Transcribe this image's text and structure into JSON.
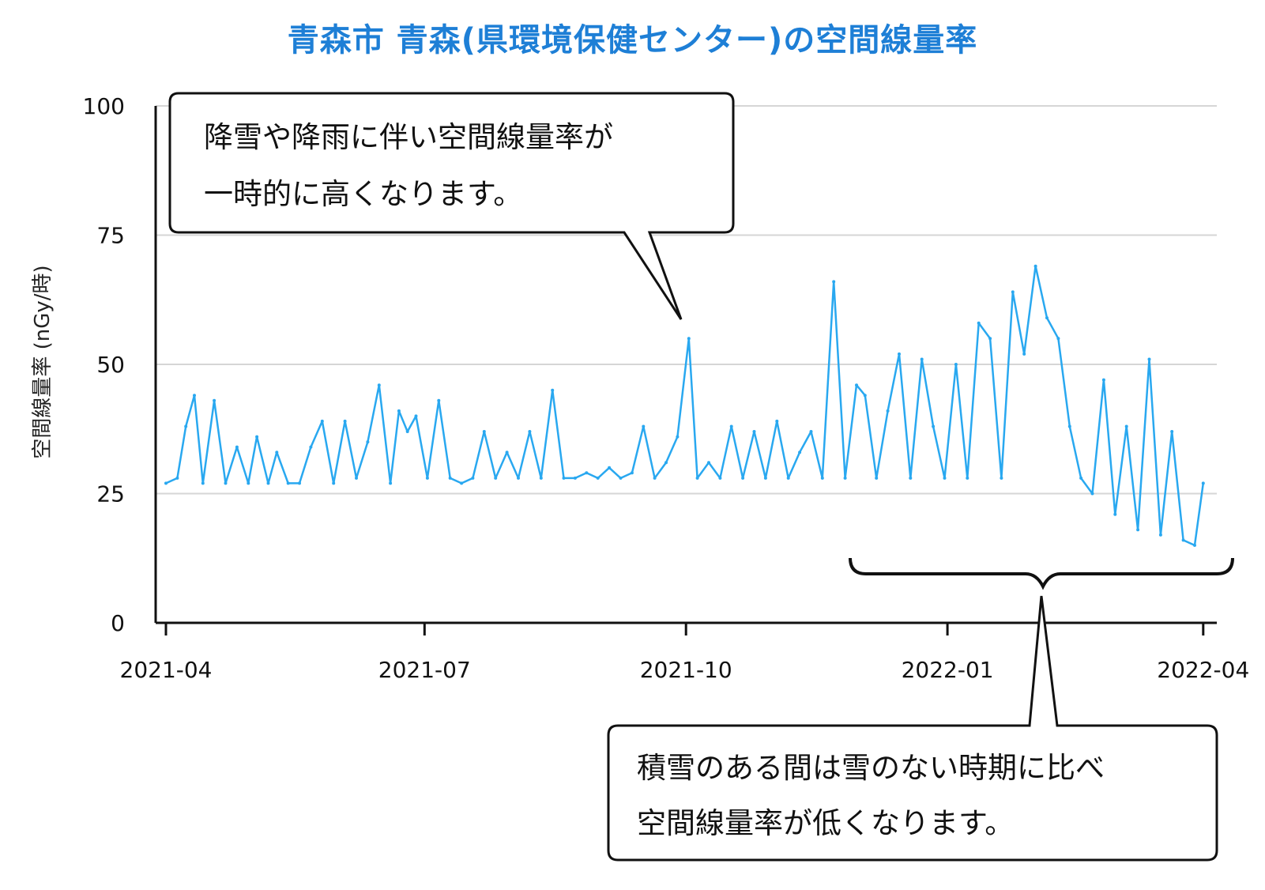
{
  "title": "青森市 青森(県環境保健センター)の空間線量率",
  "chart_data": {
    "type": "line",
    "title": "青森市 青森(県環境保健センター)の空間線量率",
    "ylabel": "空間線量率 (nGy/時)",
    "xlabel": "",
    "ylim": [
      0,
      100
    ],
    "yticks": [
      "0",
      "25",
      "50",
      "75",
      "100"
    ],
    "xticks": [
      {
        "label": "2021-04",
        "date": "2021-04-01"
      },
      {
        "label": "2021-07",
        "date": "2021-07-01"
      },
      {
        "label": "2021-10",
        "date": "2021-10-01"
      },
      {
        "label": "2022-01",
        "date": "2022-01-01"
      },
      {
        "label": "2022-04",
        "date": "2022-04-01"
      }
    ],
    "x_range": [
      "2021-04-01",
      "2022-04-03"
    ],
    "grid": true,
    "series": [
      {
        "color": "#29a8f0",
        "points": [
          [
            "2021-04-01",
            27
          ],
          [
            "2021-04-05",
            28
          ],
          [
            "2021-04-08",
            38
          ],
          [
            "2021-04-11",
            44
          ],
          [
            "2021-04-14",
            27
          ],
          [
            "2021-04-18",
            43
          ],
          [
            "2021-04-22",
            27
          ],
          [
            "2021-04-26",
            34
          ],
          [
            "2021-04-30",
            27
          ],
          [
            "2021-05-03",
            36
          ],
          [
            "2021-05-07",
            27
          ],
          [
            "2021-05-10",
            33
          ],
          [
            "2021-05-14",
            27
          ],
          [
            "2021-05-18",
            27
          ],
          [
            "2021-05-22",
            34
          ],
          [
            "2021-05-26",
            39
          ],
          [
            "2021-05-30",
            27
          ],
          [
            "2021-06-03",
            39
          ],
          [
            "2021-06-07",
            28
          ],
          [
            "2021-06-11",
            35
          ],
          [
            "2021-06-15",
            46
          ],
          [
            "2021-06-19",
            27
          ],
          [
            "2021-06-22",
            41
          ],
          [
            "2021-06-25",
            37
          ],
          [
            "2021-06-28",
            40
          ],
          [
            "2021-07-02",
            28
          ],
          [
            "2021-07-06",
            43
          ],
          [
            "2021-07-10",
            28
          ],
          [
            "2021-07-14",
            27
          ],
          [
            "2021-07-18",
            28
          ],
          [
            "2021-07-22",
            37
          ],
          [
            "2021-07-26",
            28
          ],
          [
            "2021-07-30",
            33
          ],
          [
            "2021-08-03",
            28
          ],
          [
            "2021-08-07",
            37
          ],
          [
            "2021-08-11",
            28
          ],
          [
            "2021-08-15",
            45
          ],
          [
            "2021-08-19",
            28
          ],
          [
            "2021-08-23",
            28
          ],
          [
            "2021-08-27",
            29
          ],
          [
            "2021-08-31",
            28
          ],
          [
            "2021-09-04",
            30
          ],
          [
            "2021-09-08",
            28
          ],
          [
            "2021-09-12",
            29
          ],
          [
            "2021-09-16",
            38
          ],
          [
            "2021-09-20",
            28
          ],
          [
            "2021-09-24",
            31
          ],
          [
            "2021-09-28",
            36
          ],
          [
            "2021-10-02",
            55
          ],
          [
            "2021-10-05",
            28
          ],
          [
            "2021-10-09",
            31
          ],
          [
            "2021-10-13",
            28
          ],
          [
            "2021-10-17",
            38
          ],
          [
            "2021-10-21",
            28
          ],
          [
            "2021-10-25",
            37
          ],
          [
            "2021-10-29",
            28
          ],
          [
            "2021-11-02",
            39
          ],
          [
            "2021-11-06",
            28
          ],
          [
            "2021-11-10",
            33
          ],
          [
            "2021-11-14",
            37
          ],
          [
            "2021-11-18",
            28
          ],
          [
            "2021-11-22",
            66
          ],
          [
            "2021-11-26",
            28
          ],
          [
            "2021-11-30",
            46
          ],
          [
            "2021-12-03",
            44
          ],
          [
            "2021-12-07",
            28
          ],
          [
            "2021-12-11",
            41
          ],
          [
            "2021-12-15",
            52
          ],
          [
            "2021-12-19",
            28
          ],
          [
            "2021-12-23",
            51
          ],
          [
            "2021-12-27",
            38
          ],
          [
            "2021-12-31",
            28
          ],
          [
            "2022-01-04",
            50
          ],
          [
            "2022-01-08",
            28
          ],
          [
            "2022-01-12",
            58
          ],
          [
            "2022-01-16",
            55
          ],
          [
            "2022-01-20",
            28
          ],
          [
            "2022-01-24",
            64
          ],
          [
            "2022-01-28",
            52
          ],
          [
            "2022-02-01",
            69
          ],
          [
            "2022-02-05",
            59
          ],
          [
            "2022-02-09",
            55
          ],
          [
            "2022-02-13",
            38
          ],
          [
            "2022-02-17",
            28
          ],
          [
            "2022-02-21",
            25
          ],
          [
            "2022-02-25",
            47
          ],
          [
            "2022-03-01",
            21
          ],
          [
            "2022-03-05",
            38
          ],
          [
            "2022-03-09",
            18
          ],
          [
            "2022-03-13",
            51
          ],
          [
            "2022-03-17",
            17
          ],
          [
            "2022-03-21",
            37
          ],
          [
            "2022-03-25",
            16
          ],
          [
            "2022-03-29",
            15
          ],
          [
            "2022-04-01",
            27
          ]
        ]
      }
    ]
  },
  "callouts": [
    {
      "lines": [
        "降雪や降雨に伴い空間線量率が",
        "一時的に高くなります。"
      ]
    },
    {
      "lines": [
        "積雪のある間は雪のない時期に比べ",
        "空間線量率が低くなります。"
      ]
    }
  ]
}
